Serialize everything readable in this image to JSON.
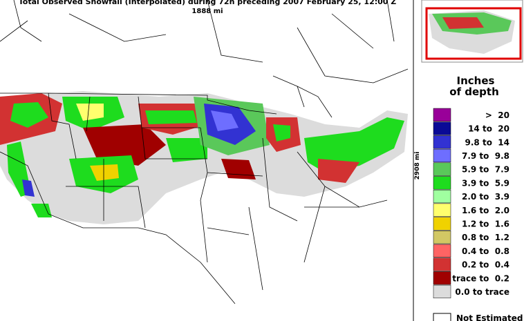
{
  "header": {
    "title": "Total Observed Snowfall (Interpolated) during 72h preceding 2007 February 25, 12:00 Z",
    "width_label": "1888 mi",
    "height_label": "2908 mi"
  },
  "legend": {
    "title_line1": "Inches",
    "title_line2": "of depth",
    "items": [
      {
        "label": ">  20",
        "color": "#990099"
      },
      {
        "label": "14 to  20",
        "color": "#0a0a96"
      },
      {
        "label": "9.8 to  14",
        "color": "#3232d2"
      },
      {
        "label": "7.9 to  9.8",
        "color": "#6e6eff"
      },
      {
        "label": "5.9 to  7.9",
        "color": "#5ac85a"
      },
      {
        "label": "3.9 to  5.9",
        "color": "#1edc1e"
      },
      {
        "label": "2.0 to  3.9",
        "color": "#a0ffa0"
      },
      {
        "label": "1.6 to  2.0",
        "color": "#ffff6e"
      },
      {
        "label": "1.2 to  1.6",
        "color": "#f0d200"
      },
      {
        "label": "0.8 to  1.2",
        "color": "#d2c864"
      },
      {
        "label": "0.4 to  0.8",
        "color": "#ff6464"
      },
      {
        "label": "0.2 to  0.4",
        "color": "#d23232"
      },
      {
        "label": "trace to  0.2",
        "color": "#a00000"
      },
      {
        "label": "0.0 to trace",
        "color": "#dcdcdc"
      }
    ],
    "not_estimated": "Not Estimated"
  }
}
